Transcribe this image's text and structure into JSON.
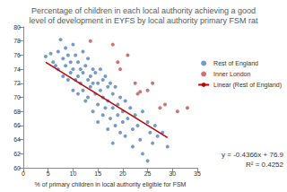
{
  "chart_data": {
    "type": "scatter",
    "title": "Percentage of children in each local authority achieving a good\nlevel of development in EYFS by local authority primary FSM rat",
    "x_label": "% of primary children in local authority eligible for FSM",
    "xlim": [
      0,
      35
    ],
    "xticks": [
      0,
      5,
      10,
      15,
      20,
      25,
      30,
      35
    ],
    "ylim": [
      60,
      80
    ],
    "yticks": [
      60,
      62,
      64,
      66,
      68,
      70,
      72,
      74,
      76,
      78,
      80
    ],
    "grid": false,
    "legend": "right",
    "annotations": [
      "y = -0.4366x + 76.9",
      "R² = 0.4252"
    ],
    "series": [
      {
        "name": "Rest of England",
        "type": "scatter",
        "marker": "circle",
        "color": "#4f81bd",
        "x": [
          4.5,
          5.5,
          6,
          6.5,
          7,
          7,
          7.5,
          8,
          8,
          8.5,
          8.5,
          9,
          9,
          9.5,
          9.5,
          10,
          10,
          10,
          10.5,
          10.5,
          11,
          11,
          11,
          11.5,
          11.5,
          12,
          12,
          12,
          12.5,
          12.5,
          13,
          13,
          13,
          13.5,
          13.5,
          14,
          14,
          14,
          14.5,
          14.5,
          15,
          15,
          15,
          15.5,
          15.5,
          16,
          16,
          16,
          16.5,
          16.5,
          17,
          17,
          17,
          17.5,
          17.5,
          18,
          18,
          18,
          18.5,
          18.5,
          19,
          19,
          19.5,
          19.5,
          20,
          20,
          20.5,
          20.5,
          21,
          21.5,
          22,
          22,
          22.5,
          23,
          23.5,
          24,
          24,
          25,
          25.5,
          26,
          26.5,
          27,
          28,
          29,
          25
        ],
        "values": [
          75.8,
          76.2,
          75,
          74.5,
          76.5,
          74,
          78.2,
          75.5,
          73,
          77,
          74.5,
          76,
          72.5,
          75,
          73.5,
          77.5,
          74,
          71,
          76,
          72.5,
          75,
          73,
          70.5,
          74,
          72,
          76.5,
          73.5,
          71,
          74.5,
          69.5,
          72.5,
          75.5,
          70,
          73,
          71.5,
          74,
          72,
          68,
          73.5,
          70.5,
          72,
          69,
          66.5,
          74,
          71,
          72.5,
          70,
          67.5,
          73,
          68.5,
          71.5,
          69.5,
          65.5,
          72,
          67,
          70.5,
          68.5,
          63.5,
          71.5,
          66,
          69,
          67.5,
          70,
          65,
          68,
          66.5,
          69.5,
          64.5,
          67,
          68.5,
          65.5,
          63,
          67.5,
          66,
          64,
          68,
          62,
          66.5,
          65,
          63.5,
          66,
          64.5,
          65,
          63,
          61
        ]
      },
      {
        "name": "Inner London",
        "type": "scatter",
        "marker": "circle",
        "color": "#c0504d",
        "x": [
          13.5,
          18,
          19,
          19.5,
          21,
          22.5,
          23,
          23.5,
          25,
          26,
          27.5,
          28.5,
          31,
          33
        ],
        "values": [
          78,
          77.5,
          75,
          74,
          76,
          72,
          70.5,
          70.8,
          71,
          72,
          68.5,
          69,
          68,
          68.5
        ]
      },
      {
        "name": "Linear (Rest of England)",
        "type": "line",
        "line_style": "solid",
        "color": "#c00000",
        "x": [
          4.5,
          29
        ],
        "values": [
          75.0,
          64.3
        ]
      }
    ]
  }
}
